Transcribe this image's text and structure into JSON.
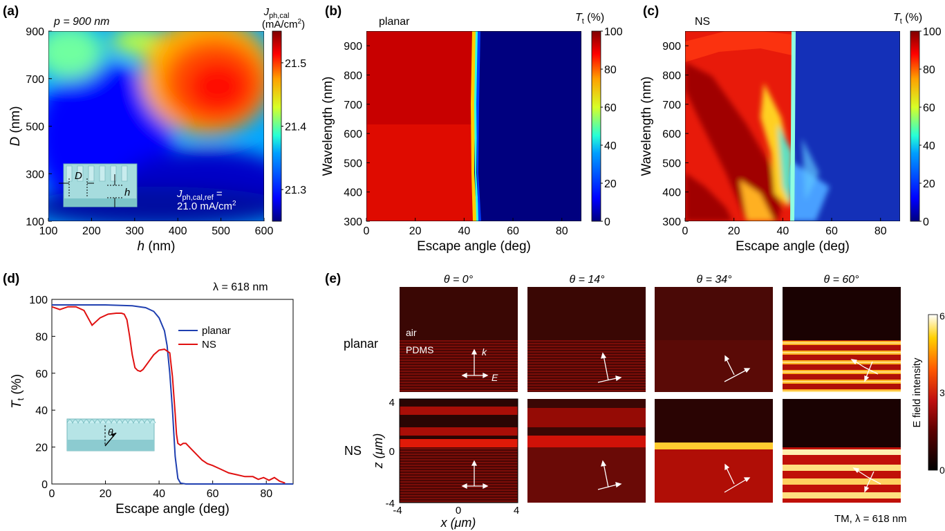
{
  "colors": {
    "jet": [
      "#00007f",
      "#0000ff",
      "#00a0ff",
      "#27ffd7",
      "#d7ff27",
      "#ffa000",
      "#ff0000",
      "#7f0000"
    ],
    "hot": [
      "#000000",
      "#3a0000",
      "#8b0000",
      "#d01010",
      "#ff5a00",
      "#ffd000",
      "#ffffff"
    ],
    "planar_line": "#1f3fb0",
    "ns_line": "#e01010"
  },
  "panel_a": {
    "label": "(a)",
    "note": "p = 900 nm",
    "cb_title_main": "J",
    "cb_title_sub": "ph,cal",
    "cb_unit": "(mA/cm",
    "cb_unit_sup": "2",
    "cb_unit_end": ")",
    "ref_main": "J",
    "ref_sub": "ph,cal,ref",
    "ref_eq": " =",
    "ref_value": "21.0 mA/cm",
    "ref_value_sup": "2",
    "inset_D": "D",
    "inset_h": "h",
    "chart_data": {
      "type": "heatmap",
      "xlabel": "h (nm)",
      "ylabel": "D (nm)",
      "xlim": [
        100,
        600
      ],
      "ylim": [
        100,
        900
      ],
      "xticks": [
        "100",
        "200",
        "300",
        "400",
        "500",
        "600"
      ],
      "yticks": [
        "100",
        "300",
        "500",
        "700",
        "900"
      ],
      "colorbar_ticks": [
        "21.3",
        "21.4",
        "21.5"
      ],
      "colorbar_range": [
        21.25,
        21.55
      ]
    }
  },
  "panel_b": {
    "label": "(b)",
    "note": "planar",
    "cb_title": "T",
    "cb_sub": "t",
    "cb_unit": " (%)",
    "chart_data": {
      "type": "heatmap",
      "xlabel": "Escape angle (deg)",
      "ylabel": "Wavelength (nm)",
      "xlim": [
        0,
        88
      ],
      "ylim": [
        300,
        950
      ],
      "xticks": [
        "0",
        "20",
        "40",
        "60",
        "80"
      ],
      "yticks": [
        "300",
        "400",
        "500",
        "600",
        "700",
        "800",
        "900"
      ],
      "colorbar_ticks": [
        "0",
        "20",
        "40",
        "60",
        "80",
        "100"
      ]
    }
  },
  "panel_c": {
    "label": "(c)",
    "note": "NS",
    "cb_title": "T",
    "cb_sub": "t",
    "cb_unit": " (%)",
    "chart_data": {
      "type": "heatmap",
      "xlabel": "Escape angle (deg)",
      "ylabel": "Wavelength (nm)",
      "xlim": [
        0,
        88
      ],
      "ylim": [
        300,
        950
      ],
      "xticks": [
        "0",
        "20",
        "40",
        "60",
        "80"
      ],
      "yticks": [
        "300",
        "400",
        "500",
        "600",
        "700",
        "800",
        "900"
      ],
      "colorbar_ticks": [
        "0",
        "20",
        "40",
        "60",
        "80",
        "100"
      ]
    }
  },
  "panel_d": {
    "label": "(d)",
    "note": "λ = 618 nm",
    "inset_theta": "θ",
    "ylabel_main": "T",
    "ylabel_sub": "t",
    "ylabel_unit": " (%)",
    "chart_data": {
      "type": "line",
      "xlabel": "Escape angle (deg)",
      "xlim": [
        0,
        90
      ],
      "ylim": [
        0,
        100
      ],
      "xticks": [
        "0",
        "20",
        "40",
        "60",
        "80"
      ],
      "yticks": [
        "0",
        "20",
        "40",
        "60",
        "80",
        "100"
      ],
      "series": [
        {
          "name": "planar",
          "x": [
            0,
            10,
            20,
            30,
            35,
            38,
            40,
            42,
            43,
            44,
            45,
            46,
            47,
            48,
            50,
            60,
            70,
            80,
            90
          ],
          "y": [
            97,
            97,
            97,
            96.5,
            95.5,
            93.5,
            90,
            83,
            75,
            60,
            40,
            15,
            3,
            0.5,
            0,
            0,
            0,
            0,
            0
          ]
        },
        {
          "name": "NS",
          "x": [
            0,
            3,
            6,
            9,
            12,
            15,
            18,
            21,
            24,
            26,
            27,
            28,
            29,
            30,
            31,
            32,
            33,
            34,
            36,
            38,
            40,
            42,
            44,
            45,
            46,
            46.5,
            47,
            48,
            49,
            50,
            52,
            54,
            56,
            58,
            60,
            63,
            66,
            69,
            72,
            75,
            77,
            79,
            81,
            83,
            85,
            87
          ],
          "y": [
            96,
            94.5,
            96,
            96,
            94,
            86,
            90,
            92,
            92.5,
            92.5,
            92,
            89,
            80,
            70,
            63,
            61.5,
            61,
            62,
            66,
            70,
            72.5,
            73,
            71,
            58,
            38,
            27,
            22,
            21,
            22,
            22,
            19,
            16,
            13,
            11,
            10,
            8,
            6,
            5,
            4,
            4,
            2.5,
            3.5,
            2,
            3.5,
            1.5,
            0.5
          ]
        }
      ]
    }
  },
  "panel_e": {
    "label": "(e)",
    "columns": [
      "θ = 0°",
      "θ = 14°",
      "θ = 34°",
      "θ = 60°"
    ],
    "row_planar": "planar",
    "row_ns": "NS",
    "air": "air",
    "pdms": "PDMS",
    "k": "k",
    "E": "E",
    "z_label": "z (μm)",
    "x_label": "x (μm)",
    "z_ticks": [
      "4",
      "0",
      "-4"
    ],
    "x_ticks": [
      "-4",
      "0",
      "4"
    ],
    "cb_label": "E field intensity",
    "cb_ticks": [
      "0",
      "3",
      "6"
    ],
    "footer": "TM, λ = 618 nm"
  }
}
